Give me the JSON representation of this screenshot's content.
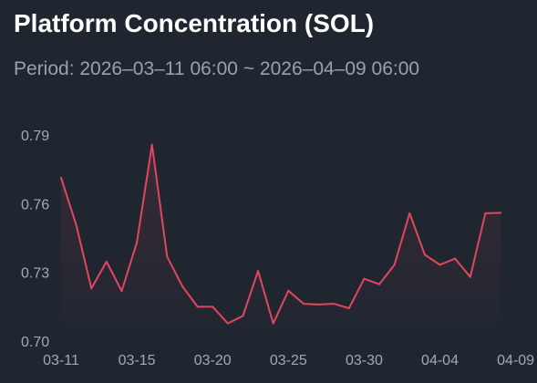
{
  "header": {
    "title": "Platform Concentration (SOL)",
    "subtitle": "Period: 2026–03–11 06:00 ~ 2026–04–09 06:00"
  },
  "chart_data": {
    "type": "area",
    "title": "Platform Concentration (SOL)",
    "subtitle": "Period: 2026–03–11 06:00 ~ 2026–04–09 06:00",
    "xlabel": "",
    "ylabel": "",
    "ylim": [
      0.7,
      0.79
    ],
    "y_ticks": [
      "0.79",
      "0.76",
      "0.73",
      "0.70"
    ],
    "y_tick_values": [
      0.79,
      0.76,
      0.73,
      0.7
    ],
    "x_ticks": [
      "03-11",
      "03-15",
      "03-20",
      "03-25",
      "03-30",
      "04-04",
      "04-09"
    ],
    "x_tick_index": [
      0,
      5,
      10,
      15,
      20,
      25,
      30
    ],
    "grid": false,
    "legend": "none",
    "line_color": "#e0475f",
    "values": [
      0.7713,
      0.7507,
      0.723,
      0.7347,
      0.7218,
      0.7431,
      0.7857,
      0.7368,
      0.724,
      0.715,
      0.715,
      0.7077,
      0.711,
      0.7306,
      0.7077,
      0.722,
      0.7163,
      0.716,
      0.7163,
      0.7143,
      0.7272,
      0.7248,
      0.7333,
      0.7558,
      0.7377,
      0.7333,
      0.736,
      0.728,
      0.7558,
      0.756
    ]
  }
}
